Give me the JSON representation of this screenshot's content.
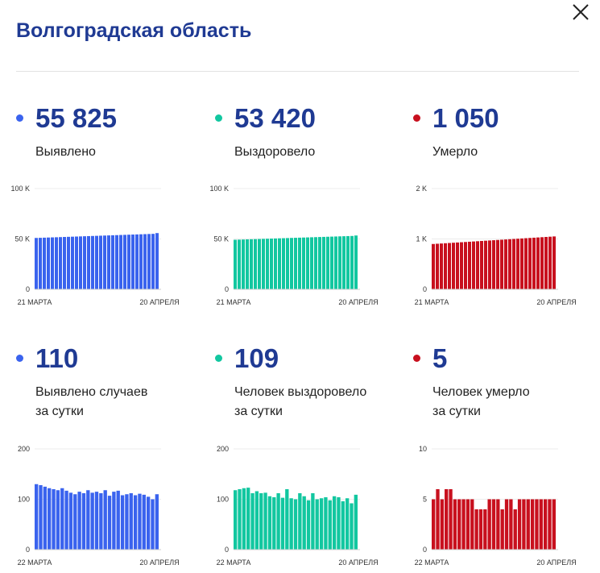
{
  "header": {
    "title": "Волгоградская область",
    "close_icon": "close-icon"
  },
  "colors": {
    "blue": "#3a63ee",
    "green": "#12c7a0",
    "red": "#c8101e",
    "title": "#1f3a93"
  },
  "stats": [
    {
      "value": "55 825",
      "label": "Выявлено",
      "color": "#3a63ee"
    },
    {
      "value": "53 420",
      "label": "Выздоровело",
      "color": "#12c7a0"
    },
    {
      "value": "1 050",
      "label": "Умерло",
      "color": "#c8101e"
    },
    {
      "value": "110",
      "label": "Выявлено случаев",
      "label2": "за сутки",
      "color": "#3a63ee"
    },
    {
      "value": "109",
      "label": "Человек выздоровело",
      "label2": "за сутки",
      "color": "#12c7a0"
    },
    {
      "value": "5",
      "label": "Человек умерло",
      "label2": "за сутки",
      "color": "#c8101e"
    }
  ],
  "chart_data": [
    {
      "type": "bar",
      "ylim": [
        0,
        100000
      ],
      "yticks": [
        0,
        50000,
        100000
      ],
      "ytick_labels": [
        "0",
        "50 K",
        "100 K"
      ],
      "x_start_label": "21 МАРТА",
      "x_end_label": "20 АПРЕЛЯ",
      "color": "#3a63ee",
      "values": [
        51000,
        51140,
        51280,
        51420,
        51560,
        51700,
        51840,
        51980,
        52120,
        52260,
        52400,
        52540,
        52680,
        52820,
        52960,
        53100,
        53240,
        53380,
        53520,
        53660,
        53800,
        53940,
        54080,
        54220,
        54360,
        54500,
        54640,
        54780,
        54920,
        55060,
        55825
      ]
    },
    {
      "type": "bar",
      "ylim": [
        0,
        100000
      ],
      "yticks": [
        0,
        50000,
        100000
      ],
      "ytick_labels": [
        "0",
        "50 K",
        "100 K"
      ],
      "x_start_label": "21 МАРТА",
      "x_end_label": "20 АПРЕЛЯ",
      "color": "#12c7a0",
      "values": [
        49200,
        49330,
        49460,
        49590,
        49720,
        49850,
        49980,
        50110,
        50240,
        50370,
        50500,
        50630,
        50760,
        50890,
        51020,
        51150,
        51280,
        51410,
        51540,
        51670,
        51800,
        51930,
        52060,
        52190,
        52320,
        52450,
        52580,
        52710,
        52840,
        52970,
        53420
      ]
    },
    {
      "type": "bar",
      "ylim": [
        0,
        2000
      ],
      "yticks": [
        0,
        1000,
        2000
      ],
      "ytick_labels": [
        "0",
        "1 K",
        "2 K"
      ],
      "x_start_label": "21 МАРТА",
      "x_end_label": "20 АПРЕЛЯ",
      "color": "#c8101e",
      "values": [
        900,
        905,
        910,
        915,
        920,
        925,
        930,
        935,
        940,
        945,
        950,
        955,
        960,
        965,
        970,
        975,
        980,
        985,
        990,
        995,
        1000,
        1005,
        1010,
        1015,
        1020,
        1025,
        1030,
        1035,
        1040,
        1045,
        1050
      ]
    },
    {
      "type": "bar",
      "ylim": [
        0,
        200
      ],
      "yticks": [
        0,
        100,
        200
      ],
      "ytick_labels": [
        "0",
        "100",
        "200"
      ],
      "x_start_label": "22 МАРТА",
      "x_end_label": "20 АПРЕЛЯ",
      "color": "#3a63ee",
      "values": [
        130,
        128,
        125,
        122,
        120,
        118,
        122,
        117,
        113,
        110,
        115,
        112,
        118,
        113,
        115,
        112,
        118,
        107,
        115,
        117,
        108,
        110,
        112,
        108,
        111,
        109,
        105,
        100,
        110
      ]
    },
    {
      "type": "bar",
      "ylim": [
        0,
        200
      ],
      "yticks": [
        0,
        100,
        200
      ],
      "ytick_labels": [
        "0",
        "100",
        "200"
      ],
      "x_start_label": "22 МАРТА",
      "x_end_label": "20 АПРЕЛЯ",
      "color": "#12c7a0",
      "values": [
        118,
        120,
        122,
        123,
        112,
        116,
        112,
        113,
        106,
        104,
        112,
        103,
        120,
        102,
        100,
        112,
        106,
        98,
        112,
        100,
        102,
        104,
        98,
        106,
        104,
        96,
        102,
        92,
        109
      ]
    },
    {
      "type": "bar",
      "ylim": [
        0,
        10
      ],
      "yticks": [
        0,
        5,
        10
      ],
      "ytick_labels": [
        "0",
        "5",
        "10"
      ],
      "x_start_label": "22 МАРТА",
      "x_end_label": "20 АПРЕЛЯ",
      "color": "#c8101e",
      "values": [
        5,
        6,
        5,
        6,
        6,
        5,
        5,
        5,
        5,
        5,
        4,
        4,
        4,
        5,
        5,
        5,
        4,
        5,
        5,
        4,
        5,
        5,
        5,
        5,
        5,
        5,
        5,
        5,
        5
      ]
    }
  ]
}
